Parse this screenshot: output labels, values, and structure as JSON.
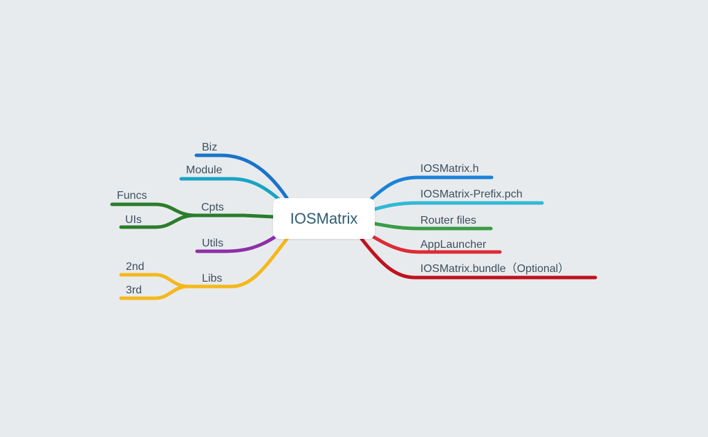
{
  "root": {
    "label": "IOSMatrix"
  },
  "left_branches": [
    {
      "id": "biz",
      "label": "Biz",
      "color": "#1a73c8"
    },
    {
      "id": "module",
      "label": "Module",
      "color": "#19a4c4"
    },
    {
      "id": "cpts",
      "label": "Cpts",
      "color": "#2b7d2b",
      "children": [
        {
          "id": "funcs",
          "label": "Funcs"
        },
        {
          "id": "uis",
          "label": "UIs"
        }
      ]
    },
    {
      "id": "utils",
      "label": "Utils",
      "color": "#8e2fa6"
    },
    {
      "id": "libs",
      "label": "Libs",
      "color": "#f4b81c",
      "children": [
        {
          "id": "2nd",
          "label": "2nd"
        },
        {
          "id": "3rd",
          "label": "3rd"
        }
      ]
    }
  ],
  "right_branches": [
    {
      "id": "header",
      "label": "IOSMatrix.h",
      "color": "#1c82d8"
    },
    {
      "id": "prefix",
      "label": "IOSMatrix-Prefix.pch",
      "color": "#2fb9d6"
    },
    {
      "id": "router",
      "label": "Router files",
      "color": "#3a9c45"
    },
    {
      "id": "launcher",
      "label": "AppLauncher",
      "color": "#dc2b37"
    },
    {
      "id": "bundle",
      "label": "IOSMatrix.bundle（Optional）",
      "color": "#c0121d"
    }
  ]
}
